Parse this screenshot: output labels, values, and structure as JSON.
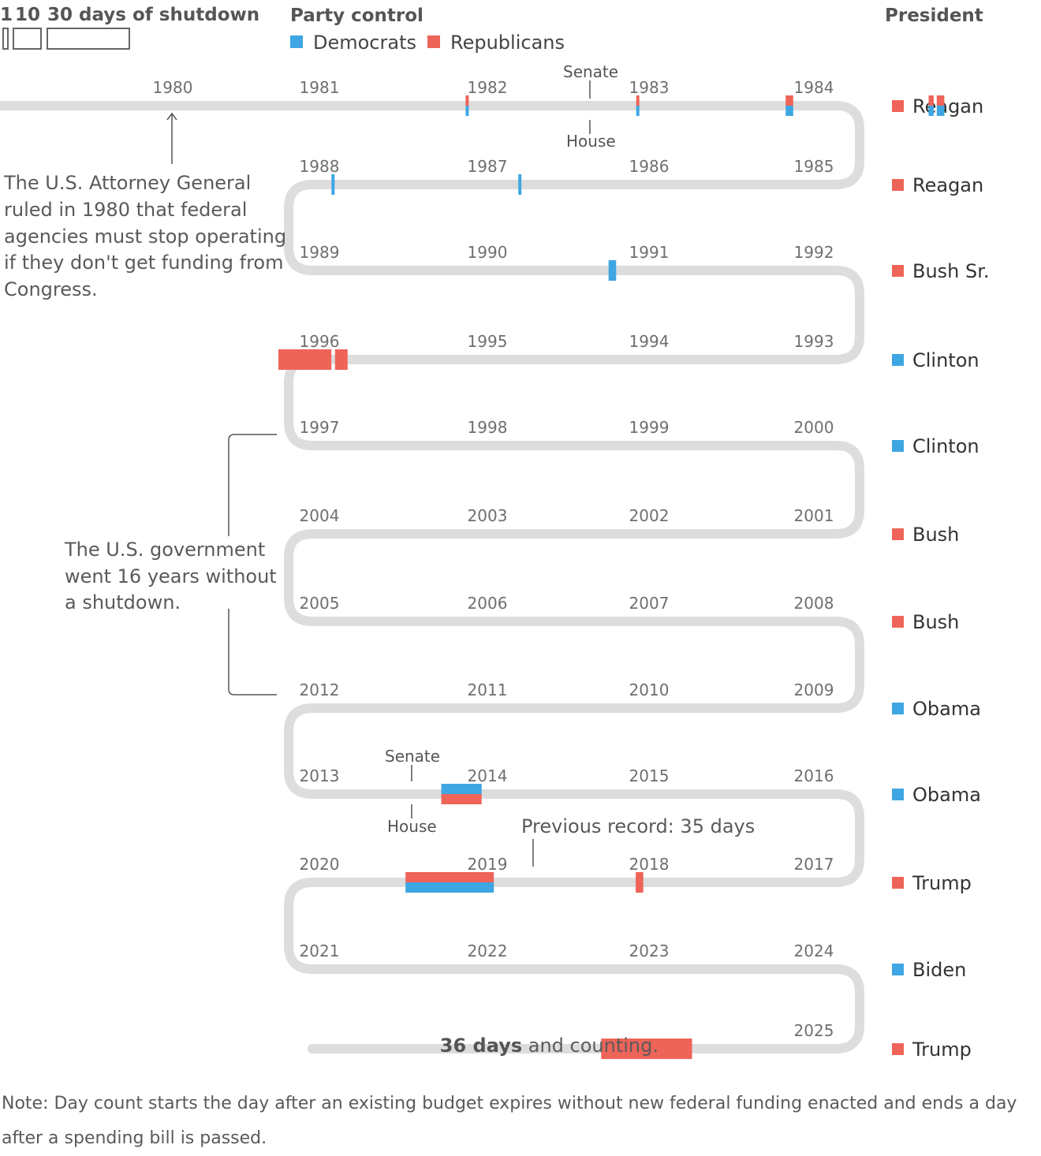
{
  "legend": {
    "size_labels": [
      "1",
      "10",
      "30 days of shutdown"
    ],
    "party_title": "Party control",
    "democrats": "Democrats",
    "republicans": "Republicans",
    "president_title": "President"
  },
  "colors": {
    "democrats": "#3ea6e3",
    "republicans": "#ee6459",
    "track": "#dddddd"
  },
  "annotations": {
    "attorney_general": [
      "The U.S. Attorney General",
      "ruled in 1980 that federal",
      "agencies must stop operating",
      "if they don't get funding from",
      "Congress."
    ],
    "no_shutdown": [
      "The U.S. government",
      "went 16 years without",
      "a shutdown."
    ],
    "previous_record": "Previous record: 35 days",
    "senate": "Senate",
    "house": "House",
    "current_bold": "36 days",
    "current_rest": " and counting."
  },
  "note": "Note: Day count starts the day after an existing budget expires without new federal funding enacted and ends a day after a spending bill is passed.",
  "chart_data": {
    "type": "timeline",
    "title": "",
    "years": [
      1980,
      1981,
      1982,
      1983,
      1984,
      1985,
      1986,
      1987,
      1988,
      1989,
      1990,
      1991,
      1992,
      1993,
      1994,
      1995,
      1996,
      1997,
      1998,
      1999,
      2000,
      2001,
      2002,
      2003,
      2004,
      2005,
      2006,
      2007,
      2008,
      2009,
      2010,
      2011,
      2012,
      2013,
      2014,
      2015,
      2016,
      2017,
      2018,
      2019,
      2020,
      2021,
      2022,
      2023,
      2024,
      2025
    ],
    "presidents": [
      {
        "name": "Reagan",
        "party": "republicans"
      },
      {
        "name": "Reagan",
        "party": "republicans"
      },
      {
        "name": "Bush Sr.",
        "party": "republicans"
      },
      {
        "name": "Clinton",
        "party": "democrats"
      },
      {
        "name": "Clinton",
        "party": "democrats"
      },
      {
        "name": "Bush",
        "party": "republicans"
      },
      {
        "name": "Bush",
        "party": "republicans"
      },
      {
        "name": "Obama",
        "party": "democrats"
      },
      {
        "name": "Obama",
        "party": "democrats"
      },
      {
        "name": "Trump",
        "party": "republicans"
      },
      {
        "name": "Biden",
        "party": "democrats"
      },
      {
        "name": "Trump",
        "party": "republicans"
      }
    ],
    "shutdowns": [
      {
        "start": 1981.9,
        "days": 1,
        "senate": "republicans",
        "house": "democrats"
      },
      {
        "start": 1982.95,
        "days": 1,
        "senate": "republicans",
        "house": "democrats"
      },
      {
        "start": 1983.87,
        "days": 3,
        "senate": "republicans",
        "house": "democrats"
      },
      {
        "start": 1984.75,
        "days": 2,
        "senate": "republicans",
        "house": "democrats"
      },
      {
        "start": 1984.8,
        "days": 3,
        "senate": "republicans",
        "house": "democrats"
      },
      {
        "start": 1986.8,
        "days": 1,
        "senate": "democrats",
        "house": "democrats"
      },
      {
        "start": 1987.95,
        "days": 1,
        "senate": "democrats",
        "house": "democrats"
      },
      {
        "start": 1990.78,
        "days": 3,
        "senate": "democrats",
        "house": "democrats"
      },
      {
        "start": 1995.87,
        "days": 5,
        "senate": "republicans",
        "house": "republicans"
      },
      {
        "start": 1995.97,
        "days": 21,
        "senate": "republicans",
        "house": "republicans"
      },
      {
        "start": 2013.75,
        "days": 16,
        "senate": "democrats",
        "house": "republicans"
      },
      {
        "start": 2018.05,
        "days": 3,
        "senate": "republicans",
        "house": "republicans"
      },
      {
        "start": 2018.97,
        "days": 35,
        "senate": "republicans",
        "house": "democrats"
      },
      {
        "start": 2025.75,
        "days": 36,
        "senate": "republicans",
        "house": "republicans"
      }
    ]
  }
}
